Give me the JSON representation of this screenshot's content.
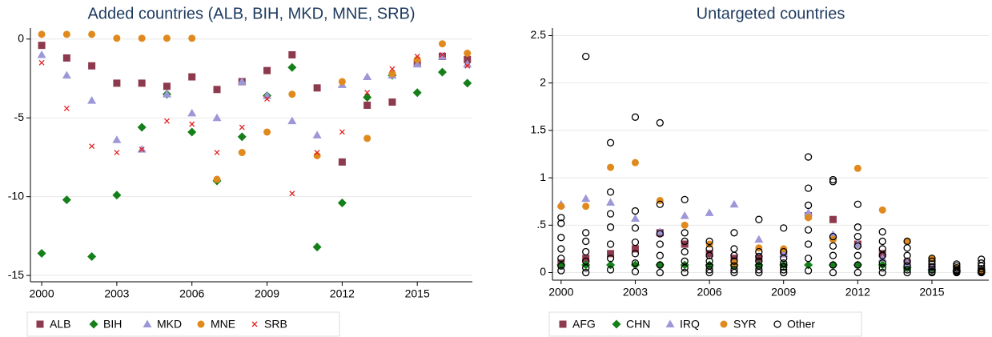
{
  "chart_data": [
    {
      "type": "scatter",
      "title": "Added countries (ALB, BIH, MKD, MNE, SRB)",
      "x": [
        2000,
        2001,
        2002,
        2003,
        2004,
        2005,
        2006,
        2007,
        2008,
        2009,
        2010,
        2011,
        2012,
        2013,
        2014,
        2015,
        2016,
        2017
      ],
      "xlim": [
        1999.55,
        2017.2
      ],
      "xticks": [
        2000,
        2003,
        2006,
        2009,
        2012,
        2015
      ],
      "ylim": [
        -15.4,
        0.7
      ],
      "yticks": [
        0,
        -5,
        -10,
        -15
      ],
      "grid": true,
      "series": [
        {
          "name": "ALB",
          "color": "#8e3a4e",
          "marker": "square",
          "values": [
            -0.4,
            -1.2,
            -1.7,
            -2.8,
            -2.8,
            -3.0,
            -2.4,
            -3.2,
            -2.7,
            -2.0,
            -1.0,
            -3.1,
            -7.8,
            -4.2,
            -4.0,
            -1.5,
            -1.1,
            -1.3
          ]
        },
        {
          "name": "BIH",
          "color": "#15801a",
          "marker": "diamond",
          "values": [
            -13.6,
            -10.2,
            -13.8,
            -9.9,
            -5.6,
            -3.5,
            -5.9,
            -9.0,
            -6.2,
            -3.6,
            -1.8,
            -13.2,
            -10.4,
            -3.7,
            -2.3,
            -3.4,
            -2.1,
            -2.8
          ]
        },
        {
          "name": "MKD",
          "color": "#9d97d8",
          "marker": "triangle",
          "values": [
            -1.0,
            -2.3,
            -3.9,
            -6.4,
            -7.0,
            -3.5,
            -4.7,
            -5.0,
            -2.7,
            -3.6,
            -5.2,
            -6.1,
            -2.9,
            -2.4,
            -2.3,
            -1.6,
            -1.1,
            -1.6
          ]
        },
        {
          "name": "MNE",
          "color": "#e08a1e",
          "marker": "circle",
          "values": [
            0.3,
            0.3,
            0.3,
            0.05,
            0.05,
            0.05,
            0.05,
            -8.9,
            -7.2,
            -5.9,
            -3.5,
            -7.4,
            -2.7,
            -6.3,
            -2.2,
            -1.3,
            -0.3,
            -0.9
          ]
        },
        {
          "name": "SRB",
          "color": "#e32020",
          "marker": "x",
          "values": [
            -1.5,
            -4.4,
            -6.8,
            -7.2,
            -7.0,
            -5.2,
            -5.4,
            -7.2,
            -5.6,
            -3.8,
            -9.8,
            -7.2,
            -5.9,
            -3.4,
            -1.9,
            -1.1,
            -1.0,
            -1.7
          ]
        }
      ]
    },
    {
      "type": "scatter",
      "title": "Untargeted countries",
      "x": [
        2000,
        2001,
        2002,
        2003,
        2004,
        2005,
        2006,
        2007,
        2008,
        2009,
        2010,
        2011,
        2012,
        2013,
        2014,
        2015,
        2016,
        2017
      ],
      "xlim": [
        1999.65,
        2017.3
      ],
      "xticks": [
        2000,
        2003,
        2006,
        2009,
        2012,
        2015
      ],
      "ylim": [
        -0.08,
        2.58
      ],
      "yticks": [
        0,
        {
          "value": 0.5,
          "label": ".5"
        },
        1,
        1.5,
        2,
        2.5
      ],
      "grid": true,
      "series": [
        {
          "name": "AFG",
          "color": "#8e3a4e",
          "marker": "square",
          "values": [
            0.1,
            0.15,
            0.2,
            0.25,
            0.42,
            0.3,
            0.2,
            0.15,
            0.15,
            0.2,
            0.6,
            0.56,
            0.3,
            0.2,
            0.1,
            0.05,
            0.03,
            0.02
          ]
        },
        {
          "name": "CHN",
          "color": "#15801a",
          "marker": "diamond",
          "values": [
            0.08,
            0.08,
            0.08,
            0.08,
            0.08,
            0.08,
            0.08,
            0.08,
            0.08,
            0.08,
            0.08,
            0.08,
            0.08,
            0.08,
            0.05,
            0.03,
            0.02,
            0.02
          ]
        },
        {
          "name": "IRQ",
          "color": "#9d97d8",
          "marker": "triangle",
          "values": [
            0.72,
            0.78,
            0.74,
            0.57,
            0.43,
            0.6,
            0.63,
            0.72,
            0.35,
            0.2,
            0.63,
            0.4,
            0.3,
            0.15,
            0.1,
            0.05,
            0.04,
            0.03
          ]
        },
        {
          "name": "SYR",
          "color": "#e08a1e",
          "marker": "circle",
          "values": [
            0.7,
            0.7,
            1.11,
            1.16,
            0.76,
            0.5,
            0.3,
            0.1,
            0.26,
            0.25,
            0.58,
            0.35,
            1.1,
            0.66,
            0.33,
            0.15,
            0.05,
            0.02
          ]
        },
        {
          "name": "Other",
          "color": "#000000",
          "marker": "hollow-circle",
          "x": [
            2000,
            2000,
            2000,
            2000,
            2000,
            2000,
            2000,
            2001,
            2001,
            2001,
            2001,
            2001,
            2001,
            2001,
            2002,
            2002,
            2002,
            2002,
            2002,
            2002,
            2002,
            2003,
            2003,
            2003,
            2003,
            2003,
            2003,
            2003,
            2004,
            2004,
            2004,
            2004,
            2004,
            2004,
            2004,
            2005,
            2005,
            2005,
            2005,
            2005,
            2005,
            2005,
            2006,
            2006,
            2006,
            2006,
            2006,
            2006,
            2006,
            2007,
            2007,
            2007,
            2007,
            2007,
            2007,
            2007,
            2008,
            2008,
            2008,
            2008,
            2008,
            2008,
            2008,
            2009,
            2009,
            2009,
            2009,
            2009,
            2009,
            2009,
            2010,
            2010,
            2010,
            2010,
            2010,
            2010,
            2010,
            2011,
            2011,
            2011,
            2011,
            2011,
            2011,
            2011,
            2012,
            2012,
            2012,
            2012,
            2012,
            2012,
            2012,
            2013,
            2013,
            2013,
            2013,
            2013,
            2013,
            2013,
            2014,
            2014,
            2014,
            2014,
            2014,
            2014,
            2014,
            2015,
            2015,
            2015,
            2015,
            2015,
            2015,
            2015,
            2016,
            2016,
            2016,
            2016,
            2016,
            2016,
            2016,
            2017,
            2017,
            2017,
            2017,
            2017,
            2017,
            2017
          ],
          "values": [
            0.58,
            0.52,
            0.37,
            0.25,
            0.15,
            0.07,
            0.02,
            2.28,
            0.42,
            0.33,
            0.22,
            0.12,
            0.05,
            0.0,
            1.37,
            0.85,
            0.62,
            0.48,
            0.3,
            0.15,
            0.03,
            1.64,
            0.65,
            0.47,
            0.32,
            0.2,
            0.1,
            0.01,
            1.58,
            0.72,
            0.41,
            0.3,
            0.18,
            0.08,
            0.0,
            0.77,
            0.42,
            0.33,
            0.22,
            0.12,
            0.05,
            0.0,
            0.33,
            0.25,
            0.18,
            0.12,
            0.07,
            0.03,
            0.0,
            0.42,
            0.25,
            0.18,
            0.12,
            0.07,
            0.03,
            0.0,
            0.56,
            0.22,
            0.17,
            0.12,
            0.07,
            0.03,
            0.0,
            0.47,
            0.22,
            0.15,
            0.1,
            0.06,
            0.03,
            0.0,
            1.22,
            0.89,
            0.71,
            0.45,
            0.3,
            0.15,
            0.02,
            0.98,
            0.96,
            0.38,
            0.28,
            0.18,
            0.08,
            0.0,
            0.72,
            0.48,
            0.38,
            0.28,
            0.18,
            0.08,
            0.0,
            0.43,
            0.33,
            0.25,
            0.18,
            0.1,
            0.05,
            0.0,
            0.33,
            0.26,
            0.18,
            0.12,
            0.07,
            0.03,
            0.0,
            0.15,
            0.12,
            0.09,
            0.06,
            0.03,
            0.01,
            0.0,
            0.09,
            0.07,
            0.05,
            0.03,
            0.02,
            0.01,
            0.0,
            0.14,
            0.1,
            0.07,
            0.04,
            0.02,
            0.01,
            0.0
          ]
        }
      ]
    }
  ]
}
